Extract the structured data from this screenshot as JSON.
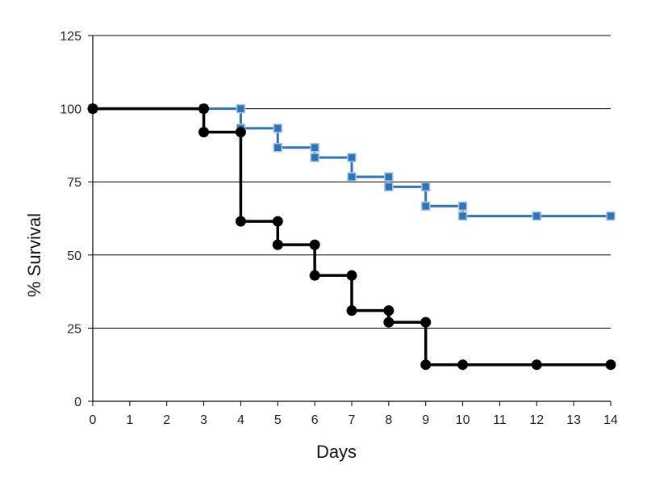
{
  "chart_data": {
    "type": "line",
    "step": true,
    "xlabel": "Days",
    "ylabel": "% Survival",
    "xlim": [
      0,
      14
    ],
    "ylim": [
      0,
      125
    ],
    "x_ticks": [
      0,
      1,
      2,
      3,
      4,
      5,
      6,
      7,
      8,
      9,
      10,
      11,
      12,
      13,
      14
    ],
    "y_ticks": [
      0,
      25,
      50,
      75,
      100,
      125
    ],
    "grid": "horizontal",
    "legend": "none",
    "series": [
      {
        "color": "#2f73b8",
        "marker": "square",
        "points": [
          {
            "x": 0,
            "y": 100
          },
          {
            "x": 3,
            "y": 100
          },
          {
            "x": 4,
            "y": 100
          },
          {
            "x": 4,
            "y": 93.3
          },
          {
            "x": 5,
            "y": 93.3
          },
          {
            "x": 5,
            "y": 86.7
          },
          {
            "x": 6,
            "y": 86.7
          },
          {
            "x": 6,
            "y": 83.3
          },
          {
            "x": 7,
            "y": 83.3
          },
          {
            "x": 7,
            "y": 76.7
          },
          {
            "x": 8,
            "y": 76.7
          },
          {
            "x": 8,
            "y": 73.3
          },
          {
            "x": 9,
            "y": 73.3
          },
          {
            "x": 9,
            "y": 66.7
          },
          {
            "x": 10,
            "y": 66.7
          },
          {
            "x": 10,
            "y": 63.3
          },
          {
            "x": 12,
            "y": 63.3
          },
          {
            "x": 14,
            "y": 63.3
          }
        ]
      },
      {
        "color": "#000000",
        "marker": "circle",
        "points": [
          {
            "x": 0,
            "y": 100
          },
          {
            "x": 3,
            "y": 100
          },
          {
            "x": 3,
            "y": 92
          },
          {
            "x": 4,
            "y": 92
          },
          {
            "x": 4,
            "y": 61.5
          },
          {
            "x": 5,
            "y": 61.5
          },
          {
            "x": 5,
            "y": 53.5
          },
          {
            "x": 6,
            "y": 53.5
          },
          {
            "x": 6,
            "y": 43
          },
          {
            "x": 7,
            "y": 43
          },
          {
            "x": 7,
            "y": 31
          },
          {
            "x": 8,
            "y": 31
          },
          {
            "x": 8,
            "y": 27
          },
          {
            "x": 9,
            "y": 27
          },
          {
            "x": 9,
            "y": 12.5
          },
          {
            "x": 10,
            "y": 12.5
          },
          {
            "x": 12,
            "y": 12.5
          },
          {
            "x": 14,
            "y": 12.5
          }
        ]
      }
    ]
  }
}
